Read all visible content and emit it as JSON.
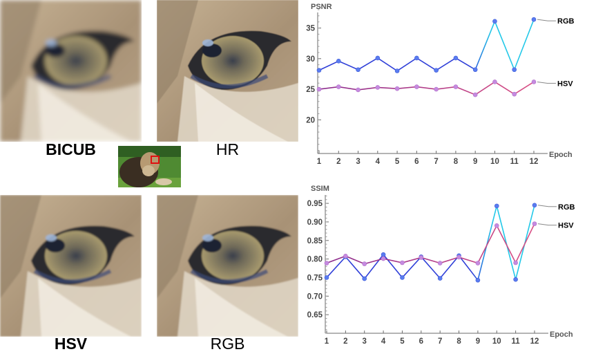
{
  "panels": [
    {
      "label": "BICUB",
      "bold": true
    },
    {
      "label": "HR",
      "bold": false
    },
    {
      "label": "HSV",
      "bold": true
    },
    {
      "label": "RGB",
      "bold": false
    }
  ],
  "colors": {
    "rgb_line": "#22c8e8",
    "rgb_line_dark": "#2f3fd8",
    "rgb_marker": "#5a7cf0",
    "hsv_line": "#d94f84",
    "hsv_line_dark": "#8a2a8c",
    "hsv_marker": "#c58be0",
    "axis": "#6a6a6a"
  },
  "chart_data": [
    {
      "type": "line",
      "title": "PSNR",
      "xlabel": "Epoch",
      "ylabel": "PSNR",
      "x": [
        1,
        2,
        3,
        4,
        5,
        6,
        7,
        8,
        9,
        10,
        11,
        12
      ],
      "xticks": [
        "1",
        "2",
        "3",
        "4",
        "5",
        "6",
        "7",
        "8",
        "9",
        "10",
        "11",
        "12"
      ],
      "yticks": [
        "20",
        "25",
        "30",
        "35"
      ],
      "ylim": [
        14.5,
        38
      ],
      "series": [
        {
          "name": "RGB",
          "values": [
            28.1,
            29.6,
            28.2,
            30.1,
            28.0,
            30.1,
            28.1,
            30.1,
            28.2,
            36.1,
            28.2,
            36.4
          ]
        },
        {
          "name": "HSV",
          "values": [
            25.0,
            25.4,
            24.9,
            25.3,
            25.1,
            25.4,
            25.0,
            25.4,
            24.1,
            26.2,
            24.2,
            26.2
          ]
        }
      ]
    },
    {
      "type": "line",
      "title": "SSIM",
      "xlabel": "Epoch",
      "ylabel": "SSIM",
      "x": [
        1,
        2,
        3,
        4,
        5,
        6,
        7,
        8,
        9,
        10,
        11,
        12
      ],
      "xticks": [
        "1",
        "2",
        "3",
        "4",
        "5",
        "6",
        "7",
        "8",
        "9",
        "10",
        "11",
        "12"
      ],
      "yticks": [
        "0.65",
        "0.70",
        "0.75",
        "0.80",
        "0.85",
        "0.90",
        "0.95"
      ],
      "ylim": [
        0.6,
        0.98
      ],
      "series": [
        {
          "name": "RGB",
          "values": [
            0.75,
            0.806,
            0.747,
            0.812,
            0.75,
            0.806,
            0.748,
            0.809,
            0.743,
            0.943,
            0.745,
            0.945
          ]
        },
        {
          "name": "HSV",
          "values": [
            0.789,
            0.808,
            0.787,
            0.801,
            0.79,
            0.804,
            0.789,
            0.805,
            0.789,
            0.89,
            0.79,
            0.895
          ]
        }
      ]
    }
  ]
}
